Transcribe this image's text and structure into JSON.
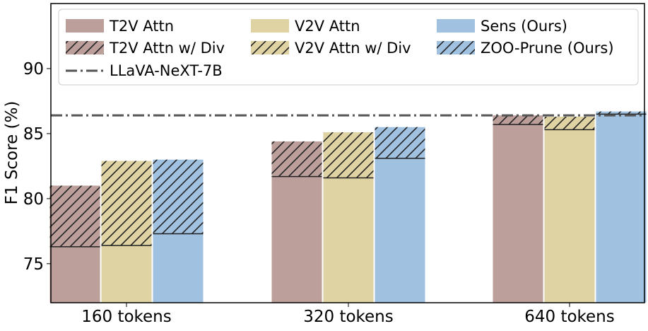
{
  "chart_data": {
    "type": "bar",
    "title": "",
    "xlabel": "",
    "ylabel": "F1 Score (%)",
    "ylim": [
      72,
      95
    ],
    "yticks": [
      75,
      80,
      85,
      90
    ],
    "categories": [
      "160 tokens",
      "320 tokens",
      "640 tokens"
    ],
    "series": [
      {
        "name": "T2V Attn",
        "values": [
          76.3,
          81.7,
          85.7
        ],
        "color": "#bc9f9b",
        "hatch": false
      },
      {
        "name": "V2V Attn",
        "values": [
          76.4,
          81.6,
          85.3
        ],
        "color": "#dfd2a3",
        "hatch": false
      },
      {
        "name": "Sens (Ours)",
        "values": [
          77.3,
          83.1,
          86.5
        ],
        "color": "#a1c1e0",
        "hatch": false
      },
      {
        "name": "T2V Attn w/ Div",
        "values": [
          81.0,
          84.4,
          86.4
        ],
        "color": "#bc9f9b",
        "hatch": true
      },
      {
        "name": "V2V Attn w/ Div",
        "values": [
          82.9,
          85.1,
          86.3
        ],
        "color": "#dfd2a3",
        "hatch": true
      },
      {
        "name": "ZOO-Prune (Ours)",
        "values": [
          83.0,
          85.5,
          86.7
        ],
        "color": "#a1c1e0",
        "hatch": true
      }
    ],
    "reference_line": {
      "name": "LLaVA-NeXT-7B",
      "value": 86.4,
      "color": "#555555",
      "style": "dash-dot"
    },
    "legend": {
      "placement": "top",
      "columns": 3
    }
  }
}
